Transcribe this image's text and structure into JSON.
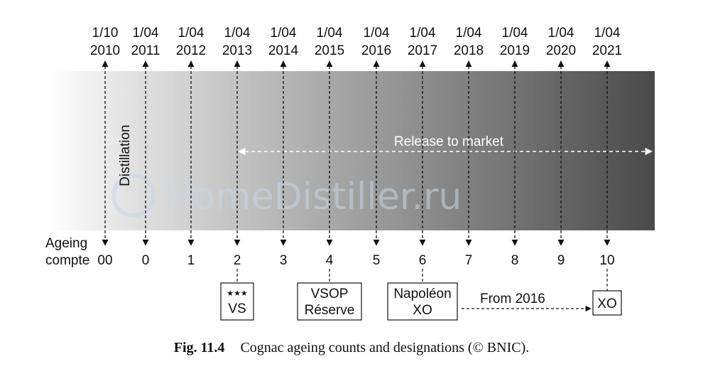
{
  "timeline": {
    "dates": [
      {
        "day": "1/10",
        "year": "2010"
      },
      {
        "day": "1/04",
        "year": "2011"
      },
      {
        "day": "1/04",
        "year": "2012"
      },
      {
        "day": "1/04",
        "year": "2013"
      },
      {
        "day": "1/04",
        "year": "2014"
      },
      {
        "day": "1/04",
        "year": "2015"
      },
      {
        "day": "1/04",
        "year": "2016"
      },
      {
        "day": "1/04",
        "year": "2017"
      },
      {
        "day": "1/04",
        "year": "2018"
      },
      {
        "day": "1/04",
        "year": "2019"
      },
      {
        "day": "1/04",
        "year": "2020"
      },
      {
        "day": "1/04",
        "year": "2021"
      }
    ],
    "counts": [
      "00",
      "0",
      "1",
      "2",
      "3",
      "4",
      "5",
      "6",
      "7",
      "8",
      "9",
      "10"
    ],
    "ageing_label_line1": "Ageing",
    "ageing_label_line2": "compte",
    "distillation_label": "Distillation",
    "release_label": "Release to market",
    "from_label": "From 2016"
  },
  "designations": [
    {
      "count": "2",
      "stars": "★★★",
      "line1": "VS",
      "line2": ""
    },
    {
      "count": "4",
      "stars": "",
      "line1": "VSOP",
      "line2": "Réserve"
    },
    {
      "count": "6",
      "stars": "",
      "line1": "Napoléon",
      "line2": "XO"
    },
    {
      "count": "10",
      "stars": "",
      "line1": "XO",
      "line2": ""
    }
  ],
  "watermark": "HomeDistiller.ru",
  "caption": {
    "figure": "Fig. 11.4",
    "text": "Cognac ageing counts and designations (© BNIC)."
  },
  "colors": {
    "gradient_start": "#ffffff",
    "gradient_end": "#4a4a4a"
  }
}
